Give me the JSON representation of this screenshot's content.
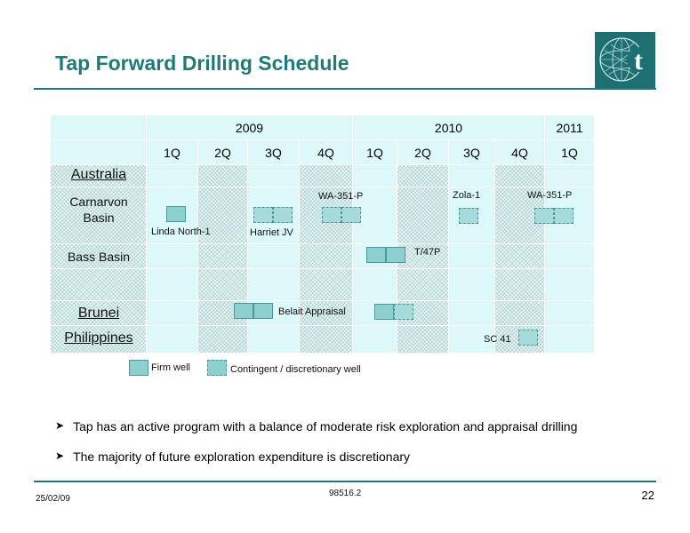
{
  "header": {
    "title": "Tap Forward Drilling Schedule"
  },
  "table": {
    "years": [
      "2009",
      "2010",
      "2011"
    ],
    "quarters": [
      "1Q",
      "2Q",
      "3Q",
      "4Q",
      "1Q",
      "2Q",
      "3Q",
      "4Q",
      "1Q"
    ],
    "rows": {
      "australia": "Australia",
      "carnarvon_line1": "Carnarvon",
      "carnarvon_line2": "Basin",
      "bass": "Bass Basin",
      "brunei": "Brunei",
      "philippines": "Philippines"
    },
    "labels": {
      "linda": "Linda North-1",
      "harriet": "Harriet JV",
      "wa351p_a": "WA-351-P",
      "zola": "Zola-1",
      "wa351p_b": "WA-351-P",
      "t47p": "T/47P",
      "belait": "Belait Appraisal",
      "sc41": "SC 41"
    }
  },
  "legend": {
    "firm": "Firm well",
    "contingent": "Contingent / discretionary well"
  },
  "bullets": [
    "Tap has an active program with a balance of moderate risk exploration and appraisal drilling",
    "The majority of future exploration expenditure is discretionary"
  ],
  "footer": {
    "date": "25/02/09",
    "code": "98516.2",
    "page": "22"
  },
  "colors": {
    "accent": "#1f7a7a",
    "well_fill": "#8ecfd0",
    "well_border": "#4a9a9b"
  }
}
